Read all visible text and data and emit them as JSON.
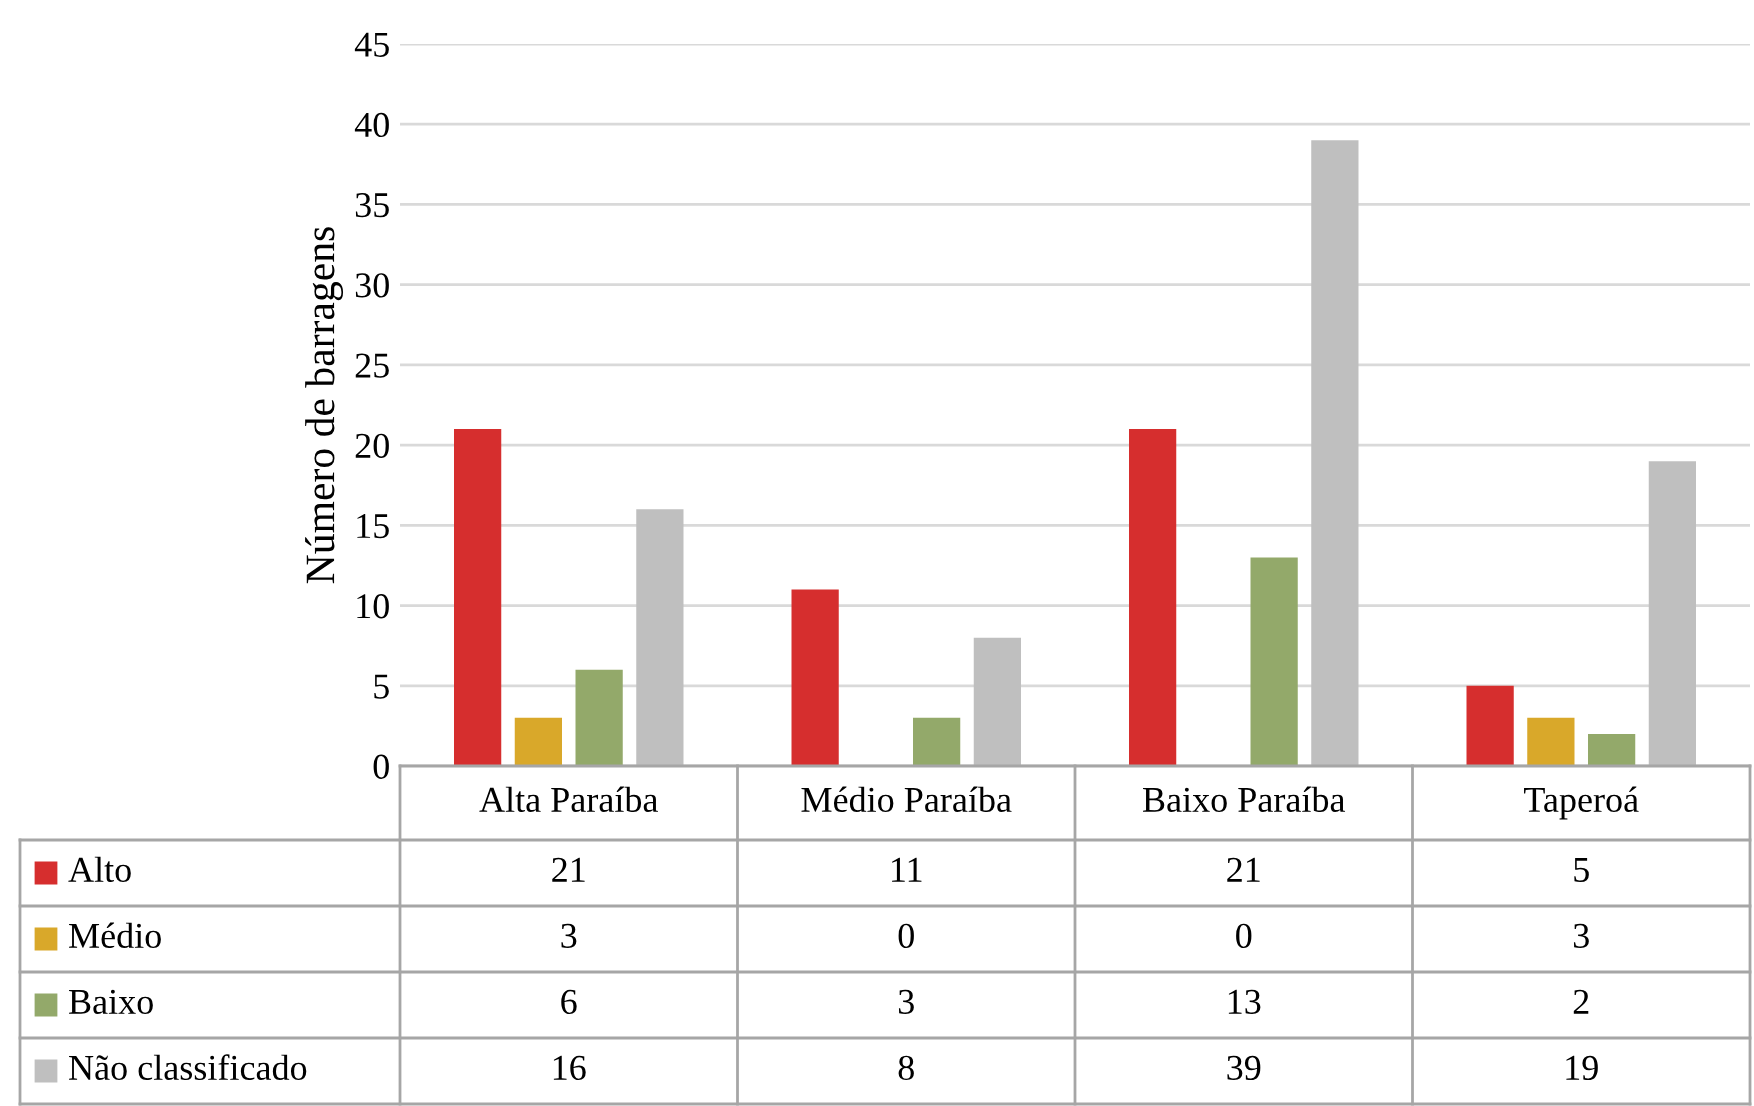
{
  "chart_data": {
    "type": "bar",
    "ylabel": "Número de barragens",
    "categories": [
      "Alta Paraíba",
      "Médio Paraíba",
      "Baixo Paraíba",
      "Taperoá"
    ],
    "series": [
      {
        "name": "Alto",
        "color": "#d62e2e",
        "values": [
          21,
          11,
          21,
          5
        ]
      },
      {
        "name": "Médio",
        "color": "#d9a82a",
        "values": [
          3,
          0,
          0,
          3
        ]
      },
      {
        "name": "Baixo",
        "color": "#93a96a",
        "values": [
          6,
          3,
          13,
          2
        ]
      },
      {
        "name": "Não classificado",
        "color": "#bfbfbf",
        "values": [
          16,
          8,
          39,
          19
        ]
      }
    ],
    "ylim": [
      0,
      45
    ],
    "yticks": [
      0,
      5,
      10,
      15,
      20,
      25,
      30,
      35,
      40,
      45
    ],
    "grid": "y",
    "data_labels": true,
    "legend": "bottom left"
  }
}
